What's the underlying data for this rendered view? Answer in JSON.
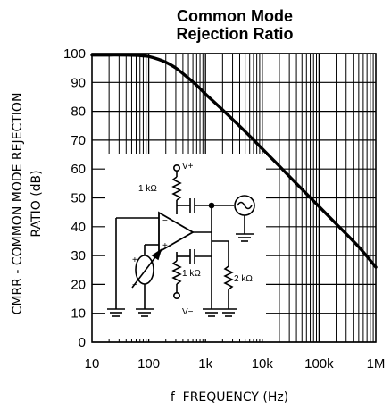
{
  "chart_data": {
    "type": "line",
    "title_line1": "Common Mode",
    "title_line2": "Rejection Ratio",
    "xlabel": "f  FREQUENCY (Hz)",
    "ylabel_line1": "CMRR - COMMON MODE REJECTION",
    "ylabel_line2": "RATIO (dB)",
    "x_scale": "log",
    "xlim": [
      10,
      1000000
    ],
    "ylim": [
      0,
      100
    ],
    "grid": true,
    "x_tick_values": [
      10,
      100,
      1000,
      10000,
      100000,
      1000000
    ],
    "x_tick_labels": [
      "10",
      "100",
      "1k",
      "10k",
      "100k",
      "1M"
    ],
    "y_tick_values": [
      0,
      10,
      20,
      30,
      40,
      50,
      60,
      70,
      80,
      90,
      100
    ],
    "y_tick_labels": [
      "0",
      "10",
      "20",
      "30",
      "40",
      "50",
      "60",
      "70",
      "80",
      "90",
      "100"
    ],
    "series": [
      {
        "x": [
          10,
          20,
          40,
          60,
          80,
          100,
          150,
          200,
          300,
          500,
          700,
          1000,
          2000,
          5000,
          10000,
          20000,
          50000,
          100000,
          200000,
          500000,
          1000000
        ],
        "y": [
          99.5,
          99.5,
          99.5,
          99.4,
          99.2,
          99,
          98,
          97,
          95,
          91.5,
          89,
          86,
          80.5,
          73,
          67,
          61,
          53,
          47,
          41,
          33,
          26
        ]
      }
    ]
  },
  "inset": {
    "resistor_top": "1 kΩ",
    "resistor_bottom": "1 kΩ",
    "resistor_load": "2 kΩ",
    "supply_pos": "V+",
    "supply_neg": "V−",
    "opamp_minus": "−",
    "opamp_plus": "+",
    "meter_plus": "+",
    "meter_minus": "−"
  },
  "colors": {
    "line": "#000000",
    "grid": "#000000",
    "background": "#ffffff"
  }
}
